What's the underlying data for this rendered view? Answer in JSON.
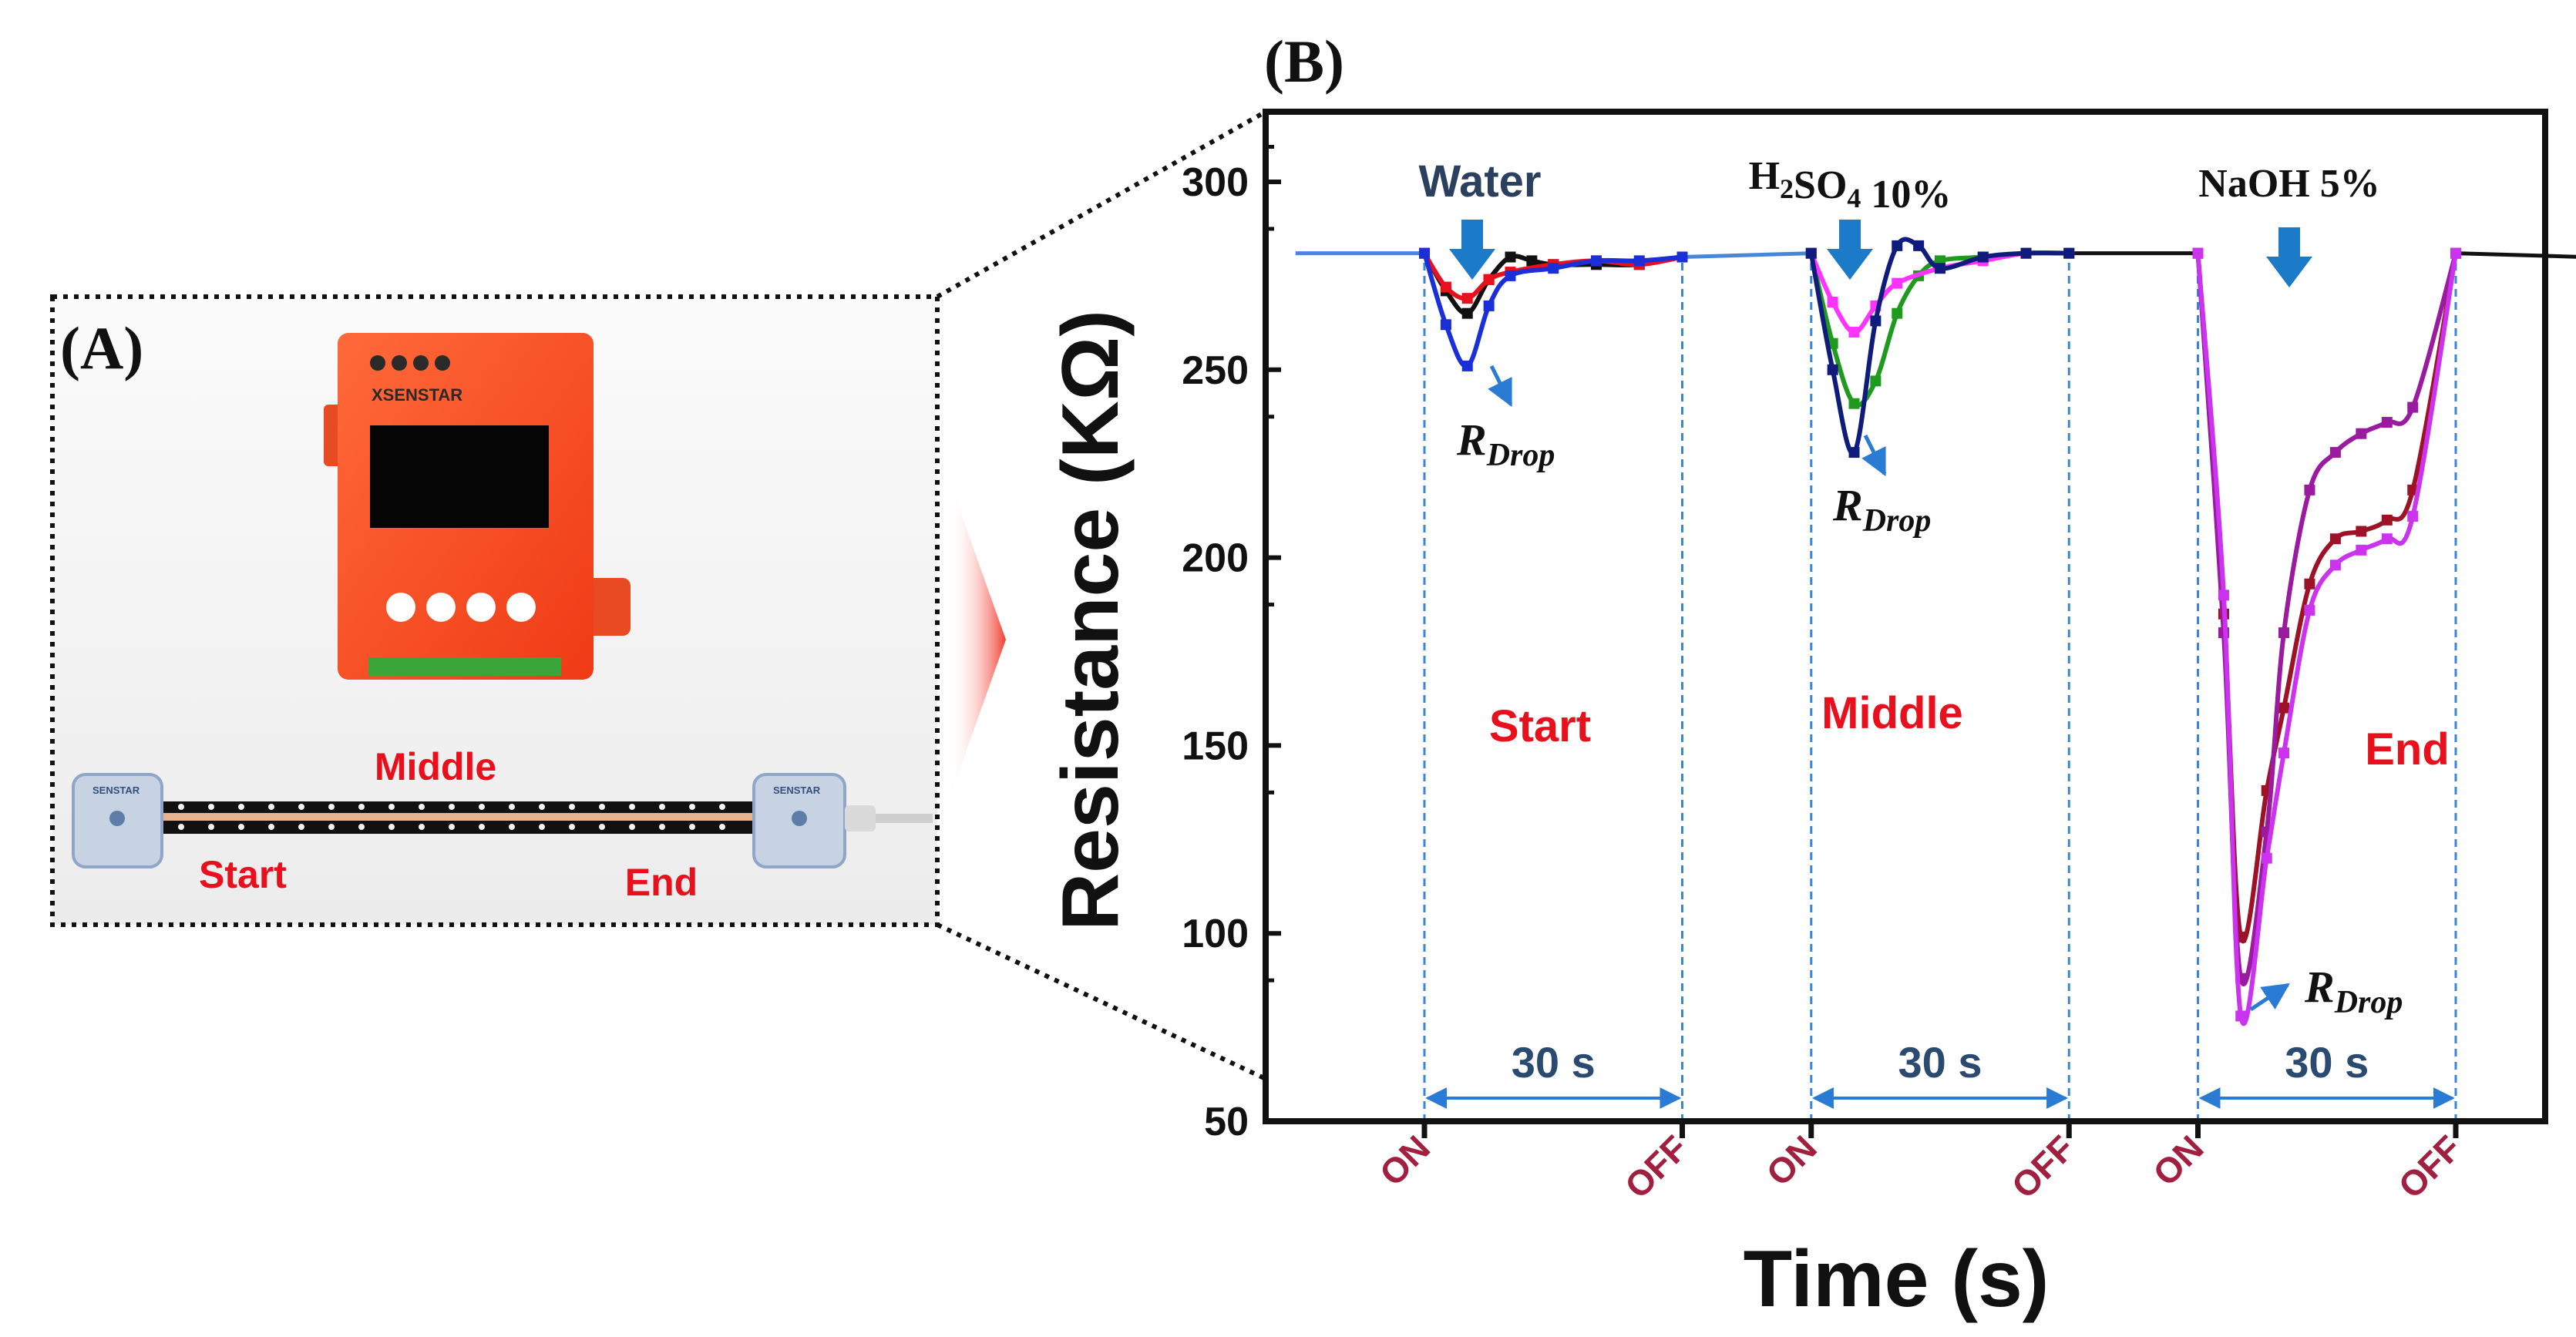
{
  "panel_a": {
    "label": "(A)",
    "device_brand": "XSENSTAR",
    "cable_brand": "SENSTAR",
    "labels": {
      "middle": "Middle",
      "start": "Start",
      "end": "End"
    }
  },
  "panel_b": {
    "label": "(B)"
  },
  "chart_data": {
    "type": "line",
    "title": "",
    "xlabel": "Time (s)",
    "ylabel": "Resistance (KΩ)",
    "ylim": [
      50,
      310
    ],
    "yticks": [
      50,
      100,
      150,
      200,
      250,
      300
    ],
    "xlim": [
      -15,
      228
    ],
    "grid": false,
    "windows": [
      {
        "on": 0,
        "off": 30,
        "on_label": "ON",
        "off_label": "OFF",
        "duration_label": "30 s",
        "location": "Start",
        "stimulus": "Water",
        "drop_label": "R",
        "drop_sub": "Drop"
      },
      {
        "on": 45,
        "off": 75,
        "on_label": "ON",
        "off_label": "OFF",
        "duration_label": "30 s",
        "location": "Middle",
        "stimulus": "H",
        "stimulus_sub1": "2",
        "stimulus_mid": "SO",
        "stimulus_sub2": "4",
        "stimulus_tail": " 10%",
        "drop_label": "R",
        "drop_sub": "Drop"
      },
      {
        "on": 90,
        "off": 120,
        "on_label": "ON",
        "off_label": "OFF",
        "duration_label": "30 s",
        "location": "End",
        "stimulus": "NaOH 5%",
        "drop_label": "R",
        "drop_sub": "Drop"
      }
    ],
    "series": [
      {
        "name": "baseline-blue",
        "color": "#4a86d8",
        "marker": false,
        "points": [
          [
            -15,
            281
          ],
          [
            0,
            281
          ]
        ]
      },
      {
        "name": "baseline-blue-2",
        "color": "#4a86d8",
        "marker": false,
        "points": [
          [
            30,
            280
          ],
          [
            45,
            281
          ]
        ]
      },
      {
        "name": "baseline-black",
        "color": "#111111",
        "marker": false,
        "points": [
          [
            75,
            281
          ],
          [
            90,
            281
          ]
        ]
      },
      {
        "name": "baseline-black-2",
        "color": "#111111",
        "marker": false,
        "points": [
          [
            120,
            281
          ],
          [
            135,
            280
          ]
        ]
      },
      {
        "name": "water-black",
        "color": "#111111",
        "marker": true,
        "points": [
          [
            0,
            281
          ],
          [
            2.5,
            271
          ],
          [
            5,
            265
          ],
          [
            7.5,
            274
          ],
          [
            10,
            280
          ],
          [
            12.5,
            279
          ],
          [
            15,
            278
          ],
          [
            20,
            278
          ],
          [
            25,
            278
          ],
          [
            30,
            280
          ]
        ]
      },
      {
        "name": "water-red",
        "color": "#e8101c",
        "marker": true,
        "points": [
          [
            0,
            281
          ],
          [
            2.5,
            272
          ],
          [
            5,
            269
          ],
          [
            7.5,
            274
          ],
          [
            10,
            276
          ],
          [
            15,
            278
          ],
          [
            20,
            279
          ],
          [
            25,
            278
          ],
          [
            30,
            280
          ]
        ]
      },
      {
        "name": "water-blue",
        "color": "#1a2fd8",
        "marker": true,
        "points": [
          [
            0,
            281
          ],
          [
            2.5,
            262
          ],
          [
            5,
            251
          ],
          [
            7.5,
            267
          ],
          [
            10,
            275
          ],
          [
            15,
            277
          ],
          [
            20,
            279
          ],
          [
            25,
            279
          ],
          [
            30,
            280
          ]
        ]
      },
      {
        "name": "h2so4-green",
        "color": "#1f9a1f",
        "marker": true,
        "points": [
          [
            45,
            281
          ],
          [
            47.5,
            257
          ],
          [
            50,
            241
          ],
          [
            52.5,
            247
          ],
          [
            55,
            265
          ],
          [
            57.5,
            275
          ],
          [
            60,
            279
          ],
          [
            65,
            280
          ],
          [
            70,
            281
          ],
          [
            75,
            281
          ]
        ]
      },
      {
        "name": "h2so4-magenta",
        "color": "#ff33ff",
        "marker": true,
        "points": [
          [
            45,
            281
          ],
          [
            47.5,
            268
          ],
          [
            50,
            260
          ],
          [
            52.5,
            267
          ],
          [
            55,
            273
          ],
          [
            60,
            277
          ],
          [
            65,
            279
          ],
          [
            70,
            281
          ],
          [
            75,
            281
          ]
        ]
      },
      {
        "name": "h2so4-navy",
        "color": "#101c7c",
        "marker": true,
        "points": [
          [
            45,
            281
          ],
          [
            47.5,
            250
          ],
          [
            50,
            228
          ],
          [
            52.5,
            263
          ],
          [
            55,
            283
          ],
          [
            57.5,
            283
          ],
          [
            60,
            277
          ],
          [
            65,
            280
          ],
          [
            70,
            281
          ],
          [
            75,
            281
          ]
        ]
      },
      {
        "name": "naoh-darkred",
        "color": "#9e1228",
        "marker": true,
        "points": [
          [
            90,
            281
          ],
          [
            93,
            185
          ],
          [
            95,
            99
          ],
          [
            98,
            138
          ],
          [
            100,
            160
          ],
          [
            103,
            193
          ],
          [
            106,
            205
          ],
          [
            109,
            207
          ],
          [
            112,
            210
          ],
          [
            115,
            218
          ],
          [
            120,
            281
          ]
        ]
      },
      {
        "name": "naoh-purple",
        "color": "#9a1aa0",
        "marker": true,
        "points": [
          [
            90,
            281
          ],
          [
            93,
            180
          ],
          [
            95,
            88
          ],
          [
            98,
            127
          ],
          [
            100,
            180
          ],
          [
            103,
            218
          ],
          [
            106,
            228
          ],
          [
            109,
            233
          ],
          [
            112,
            236
          ],
          [
            115,
            240
          ],
          [
            120,
            281
          ]
        ]
      },
      {
        "name": "naoh-violet",
        "color": "#cc33ee",
        "marker": true,
        "points": [
          [
            90,
            281
          ],
          [
            93,
            190
          ],
          [
            95,
            78
          ],
          [
            98,
            120
          ],
          [
            100,
            148
          ],
          [
            103,
            186
          ],
          [
            106,
            198
          ],
          [
            109,
            202
          ],
          [
            112,
            205
          ],
          [
            115,
            211
          ],
          [
            120,
            281
          ]
        ]
      }
    ]
  }
}
